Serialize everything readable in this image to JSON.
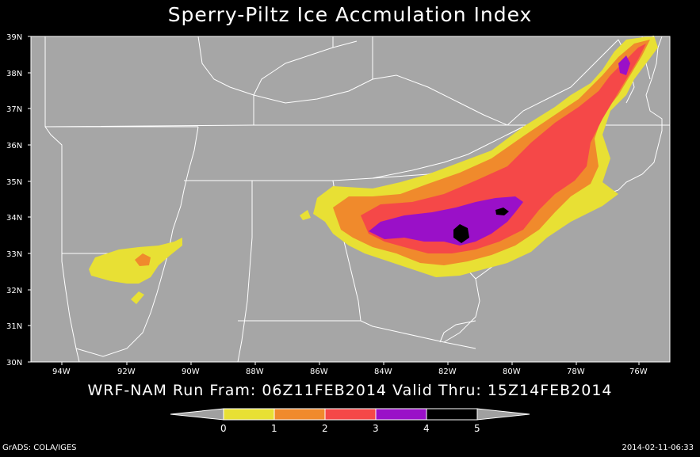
{
  "title": "Sperry-Piltz Ice Accmulation Index",
  "subtitle": "WRF-NAM Run Fram: 06Z11FEB2014 Valid Thru: 15Z14FEB2014",
  "footer_left": "GrADS: COLA/IGES",
  "footer_right": "2014-02-11-06:33",
  "lat_labels": [
    "39N",
    "38N",
    "37N",
    "36N",
    "35N",
    "34N",
    "33N",
    "32N",
    "31N",
    "30N"
  ],
  "lon_labels": [
    "94W",
    "92W",
    "90W",
    "88W",
    "86W",
    "84W",
    "82W",
    "80W",
    "78W",
    "76W"
  ],
  "colorbar": {
    "labels": [
      "0",
      "1",
      "2",
      "3",
      "4",
      "5"
    ],
    "colors": [
      "#e8e034",
      "#f08a2c",
      "#f54848",
      "#9a10c8",
      "#000000"
    ],
    "end_color": "#a0a0a0"
  },
  "colors": {
    "map_bg": "#a6a6a6",
    "borders": "#ffffff",
    "page_bg": "#000000"
  }
}
